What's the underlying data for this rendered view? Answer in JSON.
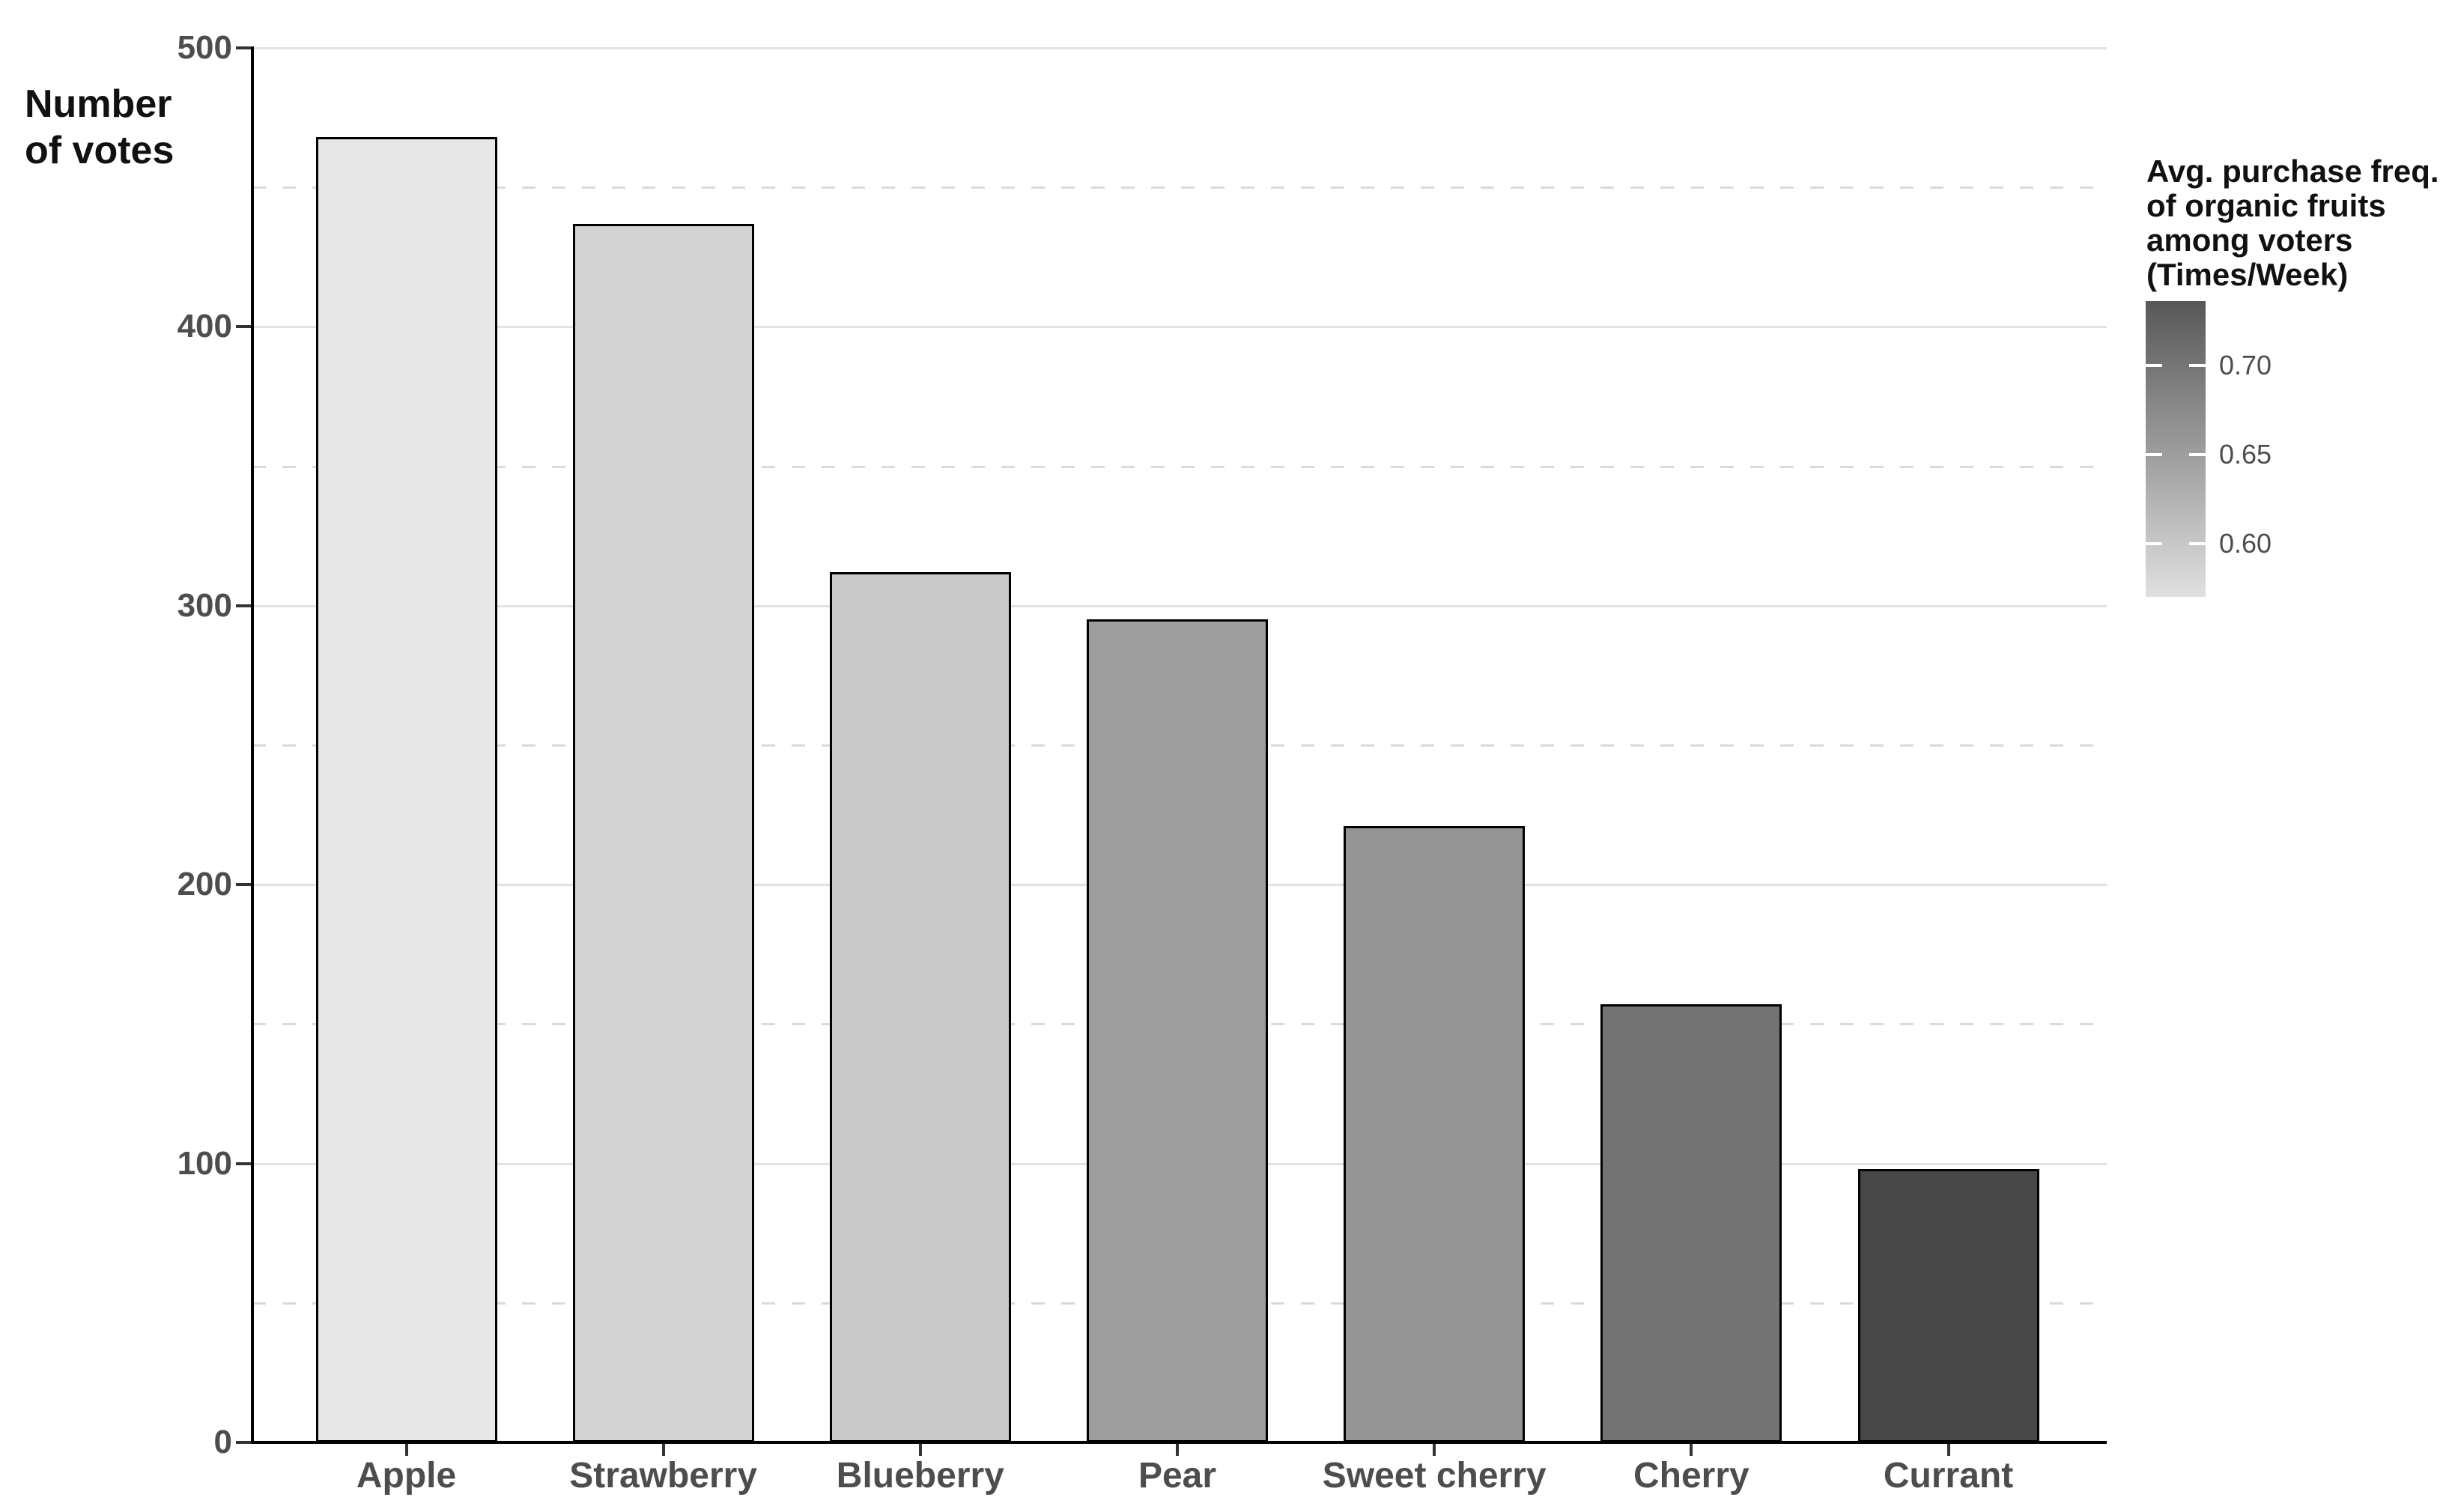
{
  "chart_data": {
    "type": "bar",
    "title": "",
    "ylabel": "Number of votes",
    "ylabel_lines": [
      "Number",
      "of votes"
    ],
    "xlabel": "",
    "categories": [
      "Apple",
      "Strawberry",
      "Blueberry",
      "Pear",
      "Sweet cherry",
      "Cherry",
      "Currant"
    ],
    "values": [
      468,
      437,
      312,
      295,
      221,
      157,
      98
    ],
    "bar_colors": [
      "#e7e7e7",
      "#d2d2d2",
      "#cacaca",
      "#9e9e9e",
      "#949494",
      "#737373",
      "#474747"
    ],
    "bar_border_color": "#000000",
    "ylim": [
      0,
      500
    ],
    "y_tick_values": [
      0,
      100,
      200,
      300,
      400,
      500
    ],
    "y_tick_labels": [
      "0",
      "100",
      "200",
      "300",
      "400",
      "500"
    ],
    "y_minor_gridline_values": [
      50,
      150,
      250,
      350,
      450
    ],
    "grid": {
      "major_color": "#e2e2e2",
      "minor_color": "#dadada",
      "minor_style": "dashed",
      "background": "#ffffff"
    },
    "legend": {
      "position": "right",
      "title_lines": [
        "Avg. purchase freq.",
        "of organic fruits",
        "among voters",
        "(Times/Week)"
      ],
      "tick_labels": [
        "0.70",
        "0.65",
        "0.60"
      ],
      "tick_values": [
        0.7,
        0.65,
        0.6
      ],
      "range_top_value": 0.736,
      "range_bottom_value": 0.57,
      "top_color": "#575757",
      "bottom_color": "#e0e0e0"
    },
    "axis_color": "#000000",
    "tick_text_color": "#4d4d4d"
  }
}
